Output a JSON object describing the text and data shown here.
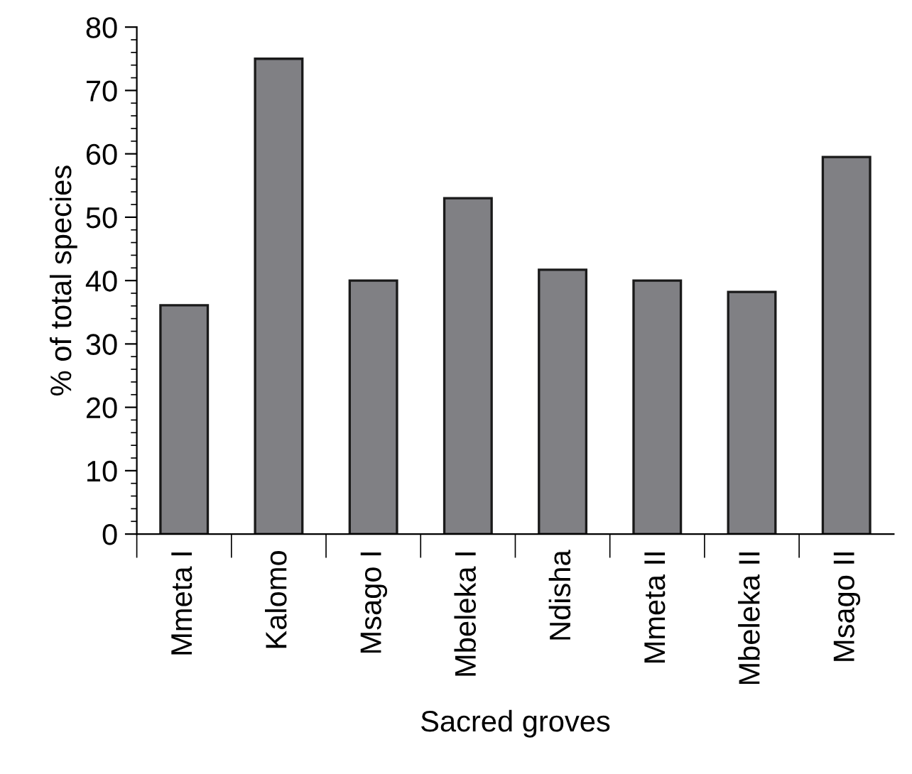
{
  "chart_data": {
    "type": "bar",
    "xlabel": "Sacred groves",
    "ylabel": "% of total species",
    "categories": [
      "Mmeta I",
      "Kalomo",
      "Msago I",
      "Mbeleka I",
      "Ndisha",
      "Mmeta II",
      "Mbeleka II",
      "Msago II"
    ],
    "values": [
      36.1,
      75,
      40,
      53,
      41.7,
      40,
      38.2,
      59.5
    ],
    "color": "#808084",
    "ylim": [
      0,
      80
    ],
    "yticks": [
      0,
      10,
      20,
      30,
      40,
      50,
      60,
      70,
      80
    ],
    "grid": false
  }
}
